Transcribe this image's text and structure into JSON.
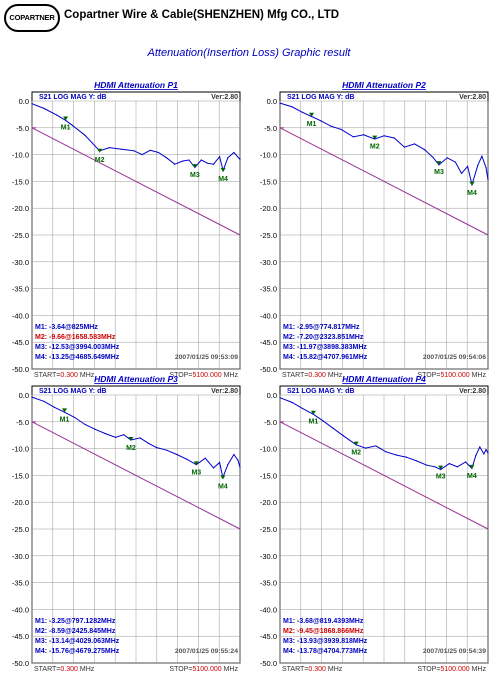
{
  "header": {
    "logo_text": "COPARTNER",
    "company_name": "Copartner Wire & Cable(SHENZHEN) Mfg CO., LTD",
    "page_title": "Attenuation(Insertion Loss) Graphic result"
  },
  "colors": {
    "trace": "#0000cc",
    "limit": "#993399",
    "title": "#0000c0",
    "marker_label": "#006600",
    "highlight_marker": "#cc0000",
    "start_stop_value": "#cc0000",
    "grid": "#999999"
  },
  "chart_data": [
    {
      "type": "line",
      "title": "HDMI Attenuation P1",
      "header_left": "S21  LOG MAG   Y: dB",
      "version": "Ver:2.80",
      "ylim": [
        -50,
        0
      ],
      "yticks": [
        "0.0",
        "-5.0",
        "-10.0",
        "-15.0",
        "-20.0",
        "-25.0",
        "-30.0",
        "-35.0",
        "-40.0",
        "-45.0",
        "-50.0"
      ],
      "x_range_mhz": [
        0.3,
        5100
      ],
      "grid": true,
      "start_label": "START=",
      "start_value": "0.300",
      "start_unit": " MHz",
      "stop_label": "STOP=",
      "stop_value": "5100.000",
      "stop_unit": " MHz",
      "timestamp": "2007/01/25 09:53:09",
      "markers": [
        {
          "label": "M1",
          "text": "M1: -3.64@825MHz",
          "x": 825,
          "y": -3.64,
          "highlight": false
        },
        {
          "label": "M2",
          "text": "M2: -9.66@1658.583MHz",
          "x": 1658.583,
          "y": -9.66,
          "highlight": true
        },
        {
          "label": "M3",
          "text": "M3: -12.53@3994.003MHz",
          "x": 3994.003,
          "y": -12.53,
          "highlight": false
        },
        {
          "label": "M4",
          "text": "M4: -13.25@4685.649MHz",
          "x": 4685.649,
          "y": -13.25,
          "highlight": false
        }
      ],
      "series": [
        {
          "values_x": [
            0.3,
            300,
            600,
            825,
            1000,
            1300,
            1658,
            1900,
            2200,
            2500,
            2700,
            2900,
            3100,
            3300,
            3500,
            3700,
            3850,
            3994,
            4150,
            4300,
            4450,
            4600,
            4685,
            4800,
            4950,
            5100
          ],
          "values_y": [
            -0.5,
            -1.4,
            -2.6,
            -3.6,
            -4.6,
            -6.4,
            -9.3,
            -8.7,
            -9.0,
            -9.3,
            -10.0,
            -9.2,
            -9.6,
            -10.6,
            -11.8,
            -11.2,
            -11.0,
            -12.4,
            -11.0,
            -11.6,
            -11.8,
            -10.4,
            -13.0,
            -10.6,
            -9.6,
            -10.9
          ]
        },
        {
          "values_x": [
            0.3,
            5100
          ],
          "values_y": [
            -5.0,
            -25.0
          ]
        }
      ]
    },
    {
      "type": "line",
      "title": "HDMI Attenuation P2",
      "header_left": "S21  LOG MAG   Y: dB",
      "version": "Ver:2.80",
      "ylim": [
        -50,
        0
      ],
      "yticks": [
        "0.0",
        "-5.0",
        "-10.0",
        "-15.0",
        "-20.0",
        "-25.0",
        "-30.0",
        "-35.0",
        "-40.0",
        "-45.0",
        "-50.0"
      ],
      "x_range_mhz": [
        0.3,
        5100
      ],
      "grid": true,
      "start_label": "START=",
      "start_value": "0.300",
      "start_unit": " MHz",
      "stop_label": "STOP=",
      "stop_value": "5100.000",
      "stop_unit": " MHz",
      "timestamp": "2007/01/25 09:54:06",
      "markers": [
        {
          "label": "M1",
          "text": "M1: -2.95@774.817MHz",
          "x": 774.817,
          "y": -2.95,
          "highlight": false
        },
        {
          "label": "M2",
          "text": "M2: -7.20@2323.851MHz",
          "x": 2323.851,
          "y": -7.2,
          "highlight": false
        },
        {
          "label": "M3",
          "text": "M3: -11.97@3898.383MHz",
          "x": 3898.383,
          "y": -11.97,
          "highlight": false
        },
        {
          "label": "M4",
          "text": "M4: -15.82@4707.961MHz",
          "x": 4707.961,
          "y": -15.82,
          "highlight": false
        }
      ],
      "series": [
        {
          "values_x": [
            0.3,
            300,
            550,
            775,
            1000,
            1250,
            1500,
            1800,
            2050,
            2323,
            2550,
            2800,
            3050,
            3300,
            3550,
            3750,
            3898,
            4100,
            4300,
            4450,
            4600,
            4708,
            4850,
            4950,
            5050,
            5100
          ],
          "values_y": [
            -0.4,
            -1.1,
            -2.1,
            -2.9,
            -3.7,
            -4.7,
            -5.3,
            -6.7,
            -6.3,
            -7.1,
            -6.5,
            -6.9,
            -8.6,
            -8.0,
            -9.1,
            -10.5,
            -11.9,
            -10.6,
            -11.4,
            -13.5,
            -12.2,
            -15.6,
            -12.0,
            -10.3,
            -12.4,
            -14.7
          ]
        },
        {
          "values_x": [
            0.3,
            5100
          ],
          "values_y": [
            -5.0,
            -25.0
          ]
        }
      ]
    },
    {
      "type": "line",
      "title": "HDMI Attenuation P3",
      "header_left": "S21  LOG MAG   Y: dB",
      "version": "Ver:2.80",
      "ylim": [
        -50,
        0
      ],
      "yticks": [
        "0.0",
        "-5.0",
        "-10.0",
        "-15.0",
        "-20.0",
        "-25.0",
        "-30.0",
        "-35.0",
        "-40.0",
        "-45.0",
        "-50.0"
      ],
      "x_range_mhz": [
        0.3,
        5100
      ],
      "grid": true,
      "start_label": "START=",
      "start_value": "0.300",
      "start_unit": " MHz",
      "stop_label": "STOP=",
      "stop_value": "5100.000",
      "stop_unit": " MHz",
      "timestamp": "2007/01/25 09:55:24",
      "markers": [
        {
          "label": "M1",
          "text": "M1: -3.25@797.1282MHz",
          "x": 797.1282,
          "y": -3.25,
          "highlight": false
        },
        {
          "label": "M2",
          "text": "M2: -8.59@2425.845MHz",
          "x": 2425.845,
          "y": -8.59,
          "highlight": false
        },
        {
          "label": "M3",
          "text": "M3: -13.14@4029.063MHz",
          "x": 4029.063,
          "y": -13.14,
          "highlight": false
        },
        {
          "label": "M4",
          "text": "M4: -15.76@4679.275MHz",
          "x": 4679.275,
          "y": -15.76,
          "highlight": false
        }
      ],
      "series": [
        {
          "values_x": [
            0.3,
            300,
            550,
            797,
            1050,
            1300,
            1550,
            1800,
            2050,
            2250,
            2425,
            2650,
            2850,
            3050,
            3300,
            3550,
            3800,
            4029,
            4250,
            4450,
            4600,
            4679,
            4800,
            4950,
            5050,
            5100
          ],
          "values_y": [
            -0.4,
            -1.2,
            -2.3,
            -3.2,
            -4.2,
            -5.5,
            -6.4,
            -7.2,
            -7.9,
            -7.4,
            -8.4,
            -8.0,
            -9.0,
            -9.8,
            -10.3,
            -11.1,
            -12.0,
            -13.0,
            -11.8,
            -13.6,
            -12.6,
            -15.4,
            -13.0,
            -11.1,
            -12.2,
            -13.5
          ]
        },
        {
          "values_x": [
            0.3,
            5100
          ],
          "values_y": [
            -5.0,
            -25.0
          ]
        }
      ]
    },
    {
      "type": "line",
      "title": "HDMI Attenuation P4",
      "header_left": "S21  LOG MAG   Y: dB",
      "version": "Ver:2.80",
      "ylim": [
        -50,
        0
      ],
      "yticks": [
        "0.0",
        "-5.0",
        "-10.0",
        "-15.0",
        "-20.0",
        "-25.0",
        "-30.0",
        "-35.0",
        "-40.0",
        "-45.0",
        "-50.0"
      ],
      "x_range_mhz": [
        0.3,
        5100
      ],
      "grid": true,
      "start_label": "START=",
      "start_value": "0.300",
      "start_unit": " MHz",
      "stop_label": "STOP=",
      "stop_value": "5100.000",
      "stop_unit": " MHz",
      "timestamp": "2007/01/25 09:54:39",
      "markers": [
        {
          "label": "M1",
          "text": "M1: -3.68@819.4393MHz",
          "x": 819.4393,
          "y": -3.68,
          "highlight": false
        },
        {
          "label": "M2",
          "text": "M2: -9.45@1868.866MHz",
          "x": 1868.866,
          "y": -9.45,
          "highlight": true
        },
        {
          "label": "M3",
          "text": "M3: -13.93@3939.818MHz",
          "x": 3939.818,
          "y": -13.93,
          "highlight": false
        },
        {
          "label": "M4",
          "text": "M4: -13.78@4704.773MHz",
          "x": 4704.773,
          "y": -13.78,
          "highlight": false
        }
      ],
      "series": [
        {
          "values_x": [
            0.3,
            300,
            550,
            819,
            1050,
            1300,
            1550,
            1868,
            2100,
            2350,
            2600,
            2850,
            3100,
            3350,
            3600,
            3800,
            3940,
            4150,
            4350,
            4550,
            4705,
            4800,
            4900,
            5000,
            5050,
            5100
          ],
          "values_y": [
            -0.5,
            -1.4,
            -2.5,
            -3.6,
            -4.8,
            -6.2,
            -7.6,
            -9.3,
            -9.9,
            -9.5,
            -10.6,
            -11.2,
            -11.6,
            -12.3,
            -13.1,
            -13.4,
            -13.9,
            -12.8,
            -13.4,
            -12.5,
            -13.7,
            -11.3,
            -9.7,
            -11.0,
            -10.2,
            -10.8
          ]
        },
        {
          "values_x": [
            0.3,
            5100
          ],
          "values_y": [
            -5.0,
            -25.0
          ]
        }
      ]
    }
  ]
}
